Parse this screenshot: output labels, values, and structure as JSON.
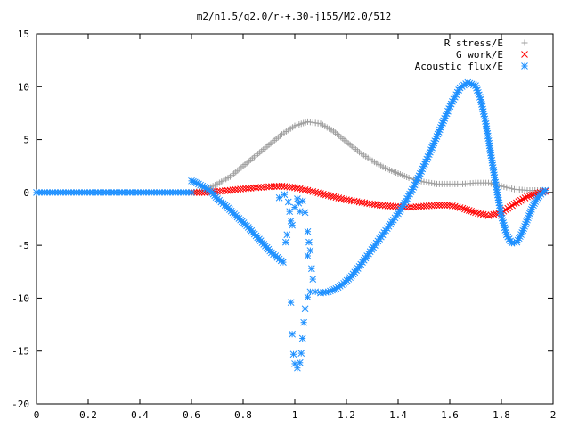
{
  "chart_data": {
    "type": "scatter",
    "title": "m2/n1.5/q2.0/r-+.30-j155/M2.0/512",
    "xlabel": "",
    "ylabel": "",
    "xlim": [
      0,
      2
    ],
    "ylim": [
      -20,
      15
    ],
    "x_ticks": [
      0,
      0.2,
      0.4,
      0.6,
      0.8,
      1,
      1.2,
      1.4,
      1.6,
      1.8,
      2
    ],
    "x_tick_labels": [
      "0",
      "0.2",
      "0.4",
      "0.6",
      "0.8",
      "1",
      "1.2",
      "1.4",
      "1.6",
      "1.8",
      "2"
    ],
    "y_ticks": [
      -20,
      -15,
      -10,
      -5,
      0,
      5,
      10,
      15
    ],
    "y_tick_labels": [
      "-20",
      "-15",
      "-10",
      "-5",
      "0",
      "5",
      "10",
      "15"
    ],
    "grid": false,
    "legend_position": "top-right",
    "series": [
      {
        "name": "R stress/E",
        "marker": "plus",
        "color": "#a0a0a0",
        "points": [
          [
            0.6,
            0.0
          ],
          [
            0.65,
            0.2
          ],
          [
            0.7,
            0.8
          ],
          [
            0.75,
            1.5
          ],
          [
            0.8,
            2.5
          ],
          [
            0.85,
            3.5
          ],
          [
            0.9,
            4.5
          ],
          [
            0.95,
            5.5
          ],
          [
            1.0,
            6.3
          ],
          [
            1.05,
            6.7
          ],
          [
            1.1,
            6.5
          ],
          [
            1.15,
            5.8
          ],
          [
            1.2,
            4.8
          ],
          [
            1.25,
            3.8
          ],
          [
            1.3,
            3.0
          ],
          [
            1.35,
            2.3
          ],
          [
            1.4,
            1.8
          ],
          [
            1.45,
            1.3
          ],
          [
            1.5,
            1.0
          ],
          [
            1.55,
            0.8
          ],
          [
            1.6,
            0.8
          ],
          [
            1.65,
            0.8
          ],
          [
            1.7,
            0.9
          ],
          [
            1.75,
            0.9
          ],
          [
            1.8,
            0.6
          ],
          [
            1.85,
            0.3
          ],
          [
            1.9,
            0.2
          ],
          [
            1.95,
            0.2
          ],
          [
            1.97,
            0.2
          ]
        ]
      },
      {
        "name": "G work/E",
        "marker": "cross",
        "color": "#ff0000",
        "points": [
          [
            0.6,
            0.0
          ],
          [
            0.65,
            0.0
          ],
          [
            0.7,
            0.1
          ],
          [
            0.75,
            0.2
          ],
          [
            0.8,
            0.35
          ],
          [
            0.85,
            0.45
          ],
          [
            0.9,
            0.55
          ],
          [
            0.95,
            0.6
          ],
          [
            1.0,
            0.45
          ],
          [
            1.05,
            0.2
          ],
          [
            1.1,
            -0.1
          ],
          [
            1.15,
            -0.4
          ],
          [
            1.2,
            -0.7
          ],
          [
            1.25,
            -0.9
          ],
          [
            1.3,
            -1.1
          ],
          [
            1.35,
            -1.25
          ],
          [
            1.4,
            -1.35
          ],
          [
            1.45,
            -1.4
          ],
          [
            1.5,
            -1.3
          ],
          [
            1.55,
            -1.2
          ],
          [
            1.6,
            -1.2
          ],
          [
            1.65,
            -1.5
          ],
          [
            1.7,
            -1.9
          ],
          [
            1.75,
            -2.2
          ],
          [
            1.8,
            -1.9
          ],
          [
            1.85,
            -1.1
          ],
          [
            1.9,
            -0.4
          ],
          [
            1.95,
            0.0
          ],
          [
            1.97,
            0.1
          ]
        ]
      },
      {
        "name": "Acoustic flux/E",
        "marker": "star",
        "color": "#1e90ff",
        "points": [
          [
            0.6,
            1.1
          ],
          [
            0.62,
            0.9
          ],
          [
            0.65,
            0.5
          ],
          [
            0.68,
            0.0
          ],
          [
            0.7,
            -0.6
          ],
          [
            0.73,
            -1.2
          ],
          [
            0.76,
            -1.9
          ],
          [
            0.79,
            -2.6
          ],
          [
            0.82,
            -3.3
          ],
          [
            0.85,
            -4.1
          ],
          [
            0.88,
            -4.9
          ],
          [
            0.91,
            -5.7
          ],
          [
            0.94,
            -6.3
          ],
          [
            0.955,
            -6.6
          ],
          [
            0.985,
            -10.4
          ],
          [
            0.99,
            -13.4
          ],
          [
            0.995,
            -15.3
          ],
          [
            1.0,
            -16.2
          ],
          [
            1.01,
            -16.6
          ],
          [
            1.02,
            -16.1
          ],
          [
            1.025,
            -15.2
          ],
          [
            1.03,
            -13.8
          ],
          [
            1.035,
            -12.3
          ],
          [
            1.04,
            -11.0
          ],
          [
            1.05,
            -9.9
          ],
          [
            1.06,
            -9.4
          ],
          [
            1.08,
            -9.4
          ],
          [
            1.1,
            -9.5
          ],
          [
            1.13,
            -9.4
          ],
          [
            1.16,
            -9.1
          ],
          [
            1.19,
            -8.6
          ],
          [
            1.22,
            -7.9
          ],
          [
            1.25,
            -7.0
          ],
          [
            1.28,
            -6.0
          ],
          [
            1.31,
            -5.0
          ],
          [
            1.34,
            -4.0
          ],
          [
            1.37,
            -3.0
          ],
          [
            1.4,
            -2.0
          ],
          [
            1.43,
            -0.8
          ],
          [
            1.46,
            0.5
          ],
          [
            1.49,
            2.0
          ],
          [
            1.52,
            3.6
          ],
          [
            1.55,
            5.3
          ],
          [
            1.58,
            7.0
          ],
          [
            1.61,
            8.6
          ],
          [
            1.64,
            9.9
          ],
          [
            1.67,
            10.4
          ],
          [
            1.7,
            10.1
          ],
          [
            1.72,
            8.8
          ],
          [
            1.74,
            6.5
          ],
          [
            1.76,
            3.5
          ],
          [
            1.78,
            0.5
          ],
          [
            1.8,
            -2.2
          ],
          [
            1.82,
            -4.0
          ],
          [
            1.84,
            -4.8
          ],
          [
            1.86,
            -4.7
          ],
          [
            1.88,
            -3.8
          ],
          [
            1.9,
            -2.6
          ],
          [
            1.92,
            -1.4
          ],
          [
            1.94,
            -0.5
          ],
          [
            1.96,
            0.0
          ],
          [
            1.97,
            0.2
          ],
          [
            0.94,
            -0.5
          ],
          [
            0.96,
            -0.2
          ],
          [
            0.975,
            -0.9
          ],
          [
            0.98,
            -1.8
          ],
          [
            0.985,
            -2.7
          ],
          [
            0.99,
            -3.1
          ],
          [
            1.0,
            -1.4
          ],
          [
            1.01,
            -0.6
          ],
          [
            1.015,
            -1.0
          ],
          [
            1.02,
            -1.8
          ],
          [
            1.03,
            -0.8
          ],
          [
            1.04,
            -1.9
          ],
          [
            1.05,
            -3.7
          ],
          [
            1.055,
            -4.7
          ],
          [
            1.06,
            -5.5
          ],
          [
            1.065,
            -7.2
          ],
          [
            1.07,
            -8.2
          ],
          [
            1.05,
            -6.0
          ],
          [
            0.965,
            -4.7
          ],
          [
            0.97,
            -4.0
          ]
        ],
        "flat_segment": {
          "x_from": 0.0,
          "x_to": 0.6,
          "y": 0.0
        }
      }
    ]
  }
}
